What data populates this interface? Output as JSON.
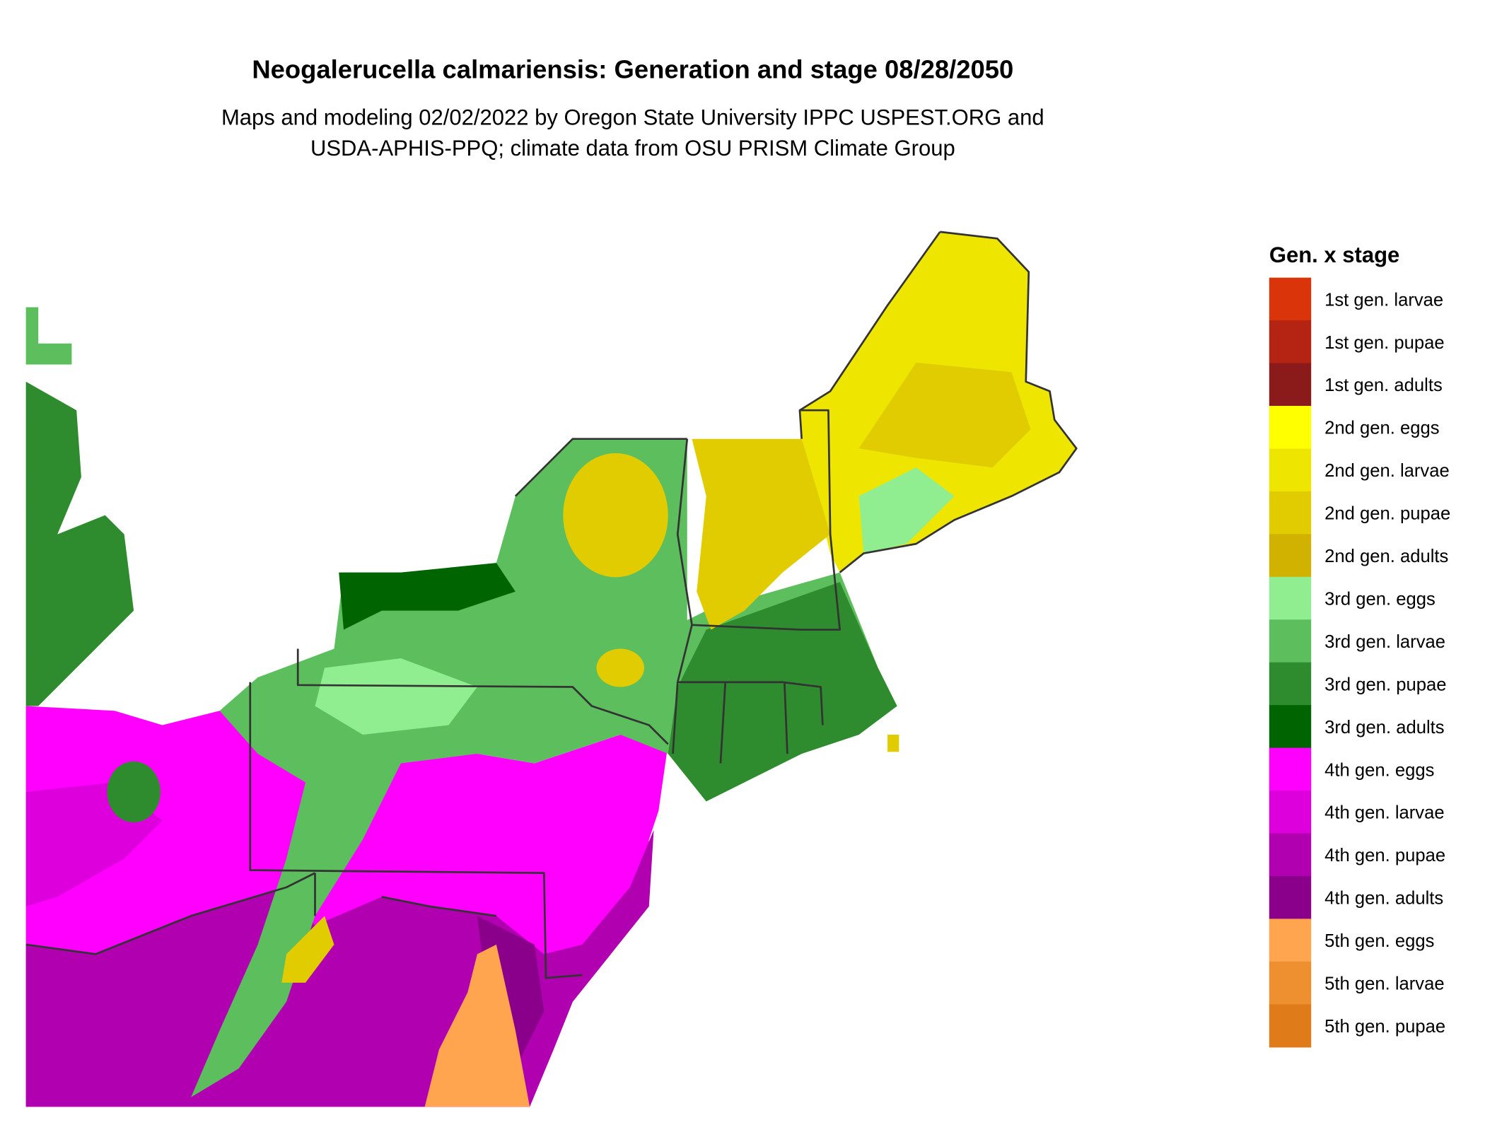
{
  "header": {
    "title": "Neogalerucella calmariensis: Generation and stage 08/28/2050",
    "subtitle_lines": [
      "Maps and modeling 02/02/2022 by Oregon State University IPPC USPEST.ORG and",
      "USDA-APHIS-PPQ; climate data from OSU PRISM Climate Group"
    ]
  },
  "legend": {
    "title": "Gen. x stage",
    "items": [
      {
        "label": "1st gen. larvae",
        "color": "#d9340a"
      },
      {
        "label": "1st gen. pupae",
        "color": "#b52312"
      },
      {
        "label": "1st gen. adults",
        "color": "#8b1a1a"
      },
      {
        "label": "2nd gen. eggs",
        "color": "#ffff00"
      },
      {
        "label": "2nd gen. larvae",
        "color": "#eee600"
      },
      {
        "label": "2nd gen. pupae",
        "color": "#e0cc00"
      },
      {
        "label": "2nd gen. adults",
        "color": "#d2b200"
      },
      {
        "label": "3rd gen. eggs",
        "color": "#90ee90"
      },
      {
        "label": "3rd gen. larvae",
        "color": "#5cbe5c"
      },
      {
        "label": "3rd gen. pupae",
        "color": "#2e8b2e"
      },
      {
        "label": "3rd gen. adults",
        "color": "#006400"
      },
      {
        "label": "4th gen. eggs",
        "color": "#ff00ff"
      },
      {
        "label": "4th gen. larvae",
        "color": "#dd00dd"
      },
      {
        "label": "4th gen. pupae",
        "color": "#b000b0"
      },
      {
        "label": "4th gen. adults",
        "color": "#8b008b"
      },
      {
        "label": "5th gen. eggs",
        "color": "#ffa54f"
      },
      {
        "label": "5th gen. larvae",
        "color": "#ee9030"
      },
      {
        "label": "5th gen. pupae",
        "color": "#e07b1a"
      }
    ]
  }
}
